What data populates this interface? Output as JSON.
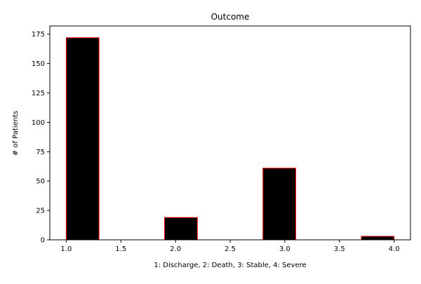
{
  "chart_data": {
    "type": "bar",
    "title": "Outcome",
    "xlabel": "1: Discharge, 2: Death, 3: Stable, 4: Severe",
    "ylabel": "# of Patients",
    "xlim": [
      0.85,
      4.15
    ],
    "ylim": [
      0,
      182
    ],
    "x_ticks": [
      "1.0",
      "1.5",
      "2.0",
      "2.5",
      "3.0",
      "3.5",
      "4.0"
    ],
    "y_ticks": [
      "0",
      "25",
      "50",
      "75",
      "100",
      "125",
      "150",
      "175"
    ],
    "bins": [
      {
        "x0": 1.0,
        "x1": 1.3,
        "value": 172
      },
      {
        "x0": 1.3,
        "x1": 1.6,
        "value": 0
      },
      {
        "x0": 1.6,
        "x1": 1.9,
        "value": 0
      },
      {
        "x0": 1.9,
        "x1": 2.2,
        "value": 19
      },
      {
        "x0": 2.2,
        "x1": 2.5,
        "value": 0
      },
      {
        "x0": 2.5,
        "x1": 2.8,
        "value": 0
      },
      {
        "x0": 2.8,
        "x1": 3.1,
        "value": 61
      },
      {
        "x0": 3.1,
        "x1": 3.4,
        "value": 0
      },
      {
        "x0": 3.4,
        "x1": 3.7,
        "value": 0
      },
      {
        "x0": 3.7,
        "x1": 4.0,
        "value": 3
      }
    ],
    "grid": false,
    "colors": {
      "bar_fill": "#000000",
      "bar_edge": "#ff0000",
      "axis": "#000000"
    }
  }
}
